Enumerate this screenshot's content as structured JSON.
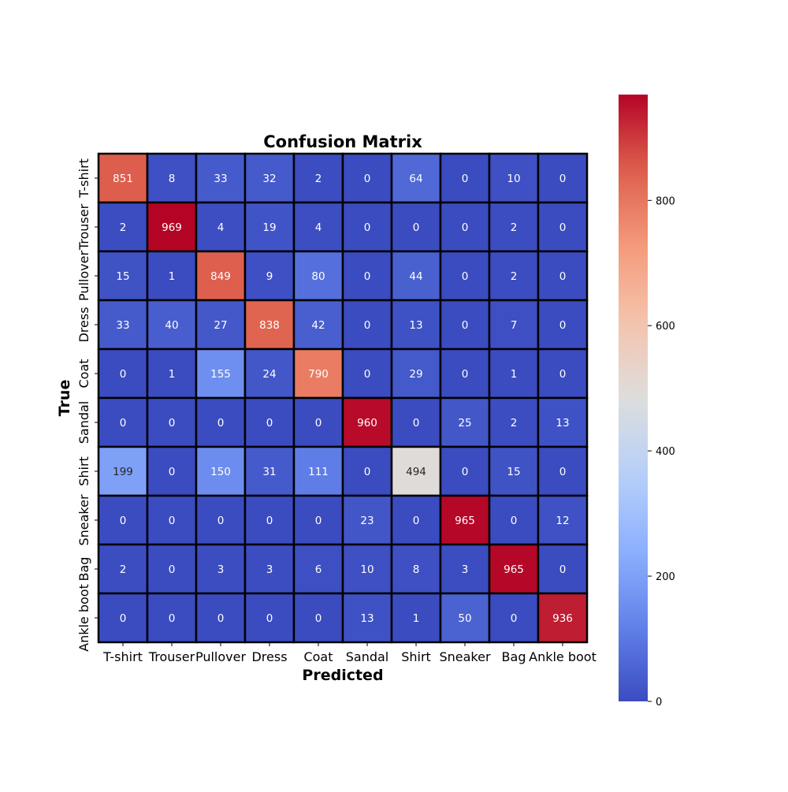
{
  "chart_data": {
    "type": "heatmap",
    "title": "Confusion Matrix",
    "xlabel": "Predicted",
    "ylabel": "True",
    "x_categories": [
      "T-shirt",
      "Trouser",
      "Pullover",
      "Dress",
      "Coat",
      "Sandal",
      "Shirt",
      "Sneaker",
      "Bag",
      "Ankle boot"
    ],
    "y_categories": [
      "T-shirt",
      "Trouser",
      "Pullover",
      "Dress",
      "Coat",
      "Sandal",
      "Shirt",
      "Sneaker",
      "Bag",
      "Ankle boot"
    ],
    "values": [
      [
        851,
        8,
        33,
        32,
        2,
        0,
        64,
        0,
        10,
        0
      ],
      [
        2,
        969,
        4,
        19,
        4,
        0,
        0,
        0,
        2,
        0
      ],
      [
        15,
        1,
        849,
        9,
        80,
        0,
        44,
        0,
        2,
        0
      ],
      [
        33,
        40,
        27,
        838,
        42,
        0,
        13,
        0,
        7,
        0
      ],
      [
        0,
        1,
        155,
        24,
        790,
        0,
        29,
        0,
        1,
        0
      ],
      [
        0,
        0,
        0,
        0,
        0,
        960,
        0,
        25,
        2,
        13
      ],
      [
        199,
        0,
        150,
        31,
        111,
        0,
        494,
        0,
        15,
        0
      ],
      [
        0,
        0,
        0,
        0,
        0,
        23,
        0,
        965,
        0,
        12
      ],
      [
        2,
        0,
        3,
        3,
        6,
        10,
        8,
        3,
        965,
        0
      ],
      [
        0,
        0,
        0,
        0,
        0,
        13,
        1,
        50,
        0,
        936
      ]
    ],
    "colormap": "coolwarm",
    "value_range": [
      0,
      969
    ],
    "colorbar_ticks": [
      0,
      200,
      400,
      600,
      800
    ],
    "colorbar_tick_labels": [
      "0",
      "200",
      "400",
      "600",
      "800"
    ],
    "cell_border_color": "#000000",
    "legend": "colorbar-right"
  }
}
